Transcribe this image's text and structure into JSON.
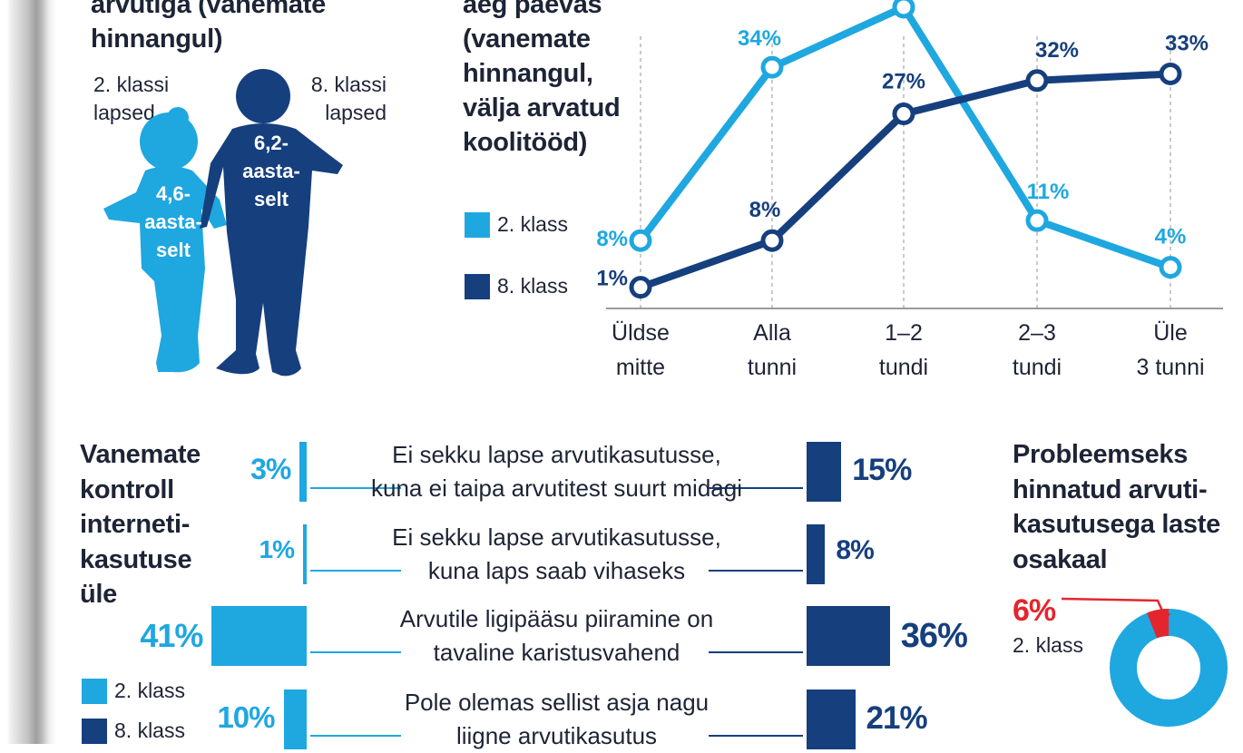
{
  "colors": {
    "light": "#1fa7e0",
    "dark": "#163f7e",
    "red": "#e3262d",
    "text": "#1d2435"
  },
  "left_panel": {
    "title_lines": [
      "arvutiga (vanemate",
      "hinnangul)"
    ],
    "label_2": [
      "2. klassi",
      "lapsed"
    ],
    "label_8": [
      "8. klassi",
      "lapsed"
    ],
    "age_2": [
      "4,6-",
      "aasta-",
      "selt"
    ],
    "age_8": [
      "6,2-",
      "aasta-",
      "selt"
    ]
  },
  "line_chart_title": [
    "aeg päevas",
    "(vanemate",
    "hinnangul,",
    "välja arvatud",
    "koolitööd)"
  ],
  "legend": [
    {
      "label": "2. klass",
      "color": "#1fa7e0"
    },
    {
      "label": "8. klass",
      "color": "#163f7e"
    }
  ],
  "chart_data": [
    {
      "type": "line",
      "title": "",
      "categories": [
        "Üldse mitte",
        "Alla tunni",
        "1–2 tundi",
        "2–3 tundi",
        "Üle 3 tunni"
      ],
      "category_lines": [
        [
          "Üldse",
          "mitte"
        ],
        [
          "Alla",
          "tunni"
        ],
        [
          "1–2",
          "tundi"
        ],
        [
          "2–3",
          "tundi"
        ],
        [
          "Üle",
          "3 tunni"
        ]
      ],
      "series": [
        {
          "name": "2. klass",
          "values": [
            8,
            34,
            43,
            11,
            4
          ],
          "labels": [
            "8%",
            "34%",
            "",
            "11%",
            "4%"
          ],
          "color": "#1fa7e0"
        },
        {
          "name": "8. klass",
          "values": [
            1,
            8,
            27,
            32,
            33
          ],
          "labels": [
            "1%",
            "8%",
            "27%",
            "32%",
            "33%"
          ],
          "color": "#163f7e"
        }
      ],
      "ylim": [
        0,
        45
      ],
      "grid": "vertical dashed"
    },
    {
      "type": "bar",
      "title": "Vanemate kontroll interneti-kasutuse üle",
      "title_lines": [
        "Vanemate",
        "kontroll",
        "interneti-",
        "kasutuse",
        "üle"
      ],
      "categories": [
        "Ei sekku lapse arvutikasutusse, kuna ei taipa arvutitest suurt midagi",
        "Ei sekku lapse arvutikasutusse, kuna laps saab vihaseks",
        "Arvutile ligipääsu piiramine on tavaline karistusvahend",
        "Pole olemas sellist asja nagu liigne arvutikasutus"
      ],
      "category_lines": [
        [
          "Ei sekku lapse arvutikasutusse,",
          "kuna ei taipa arvutitest suurt midagi"
        ],
        [
          "Ei sekku lapse arvutikasutusse,",
          "kuna laps saab vihaseks"
        ],
        [
          "Arvutile ligipääsu piiramine on",
          "tavaline karistusvahend"
        ],
        [
          "Pole olemas sellist asja nagu",
          "liigne arvutikasutus"
        ]
      ],
      "series": [
        {
          "name": "2. klass",
          "values": [
            3,
            1,
            41,
            10
          ],
          "labels": [
            "3%",
            "1%",
            "41%",
            "10%"
          ],
          "color": "#1fa7e0"
        },
        {
          "name": "8. klass",
          "values": [
            15,
            8,
            36,
            21
          ],
          "labels": [
            "15%",
            "8%",
            "36%",
            "21%"
          ],
          "color": "#163f7e"
        }
      ]
    },
    {
      "type": "pie",
      "title": "Probleemseks hinnatud arvutikasutusega laste osakaal",
      "title_lines": [
        "Probleemseks",
        "hinnatud arvuti-",
        "kasutusega laste",
        "osakaal"
      ],
      "values": [
        6,
        94
      ],
      "highlight_label": "6%",
      "highlight_caption": "2. klass",
      "colors": [
        "#e3262d",
        "#1fa7e0"
      ]
    }
  ]
}
